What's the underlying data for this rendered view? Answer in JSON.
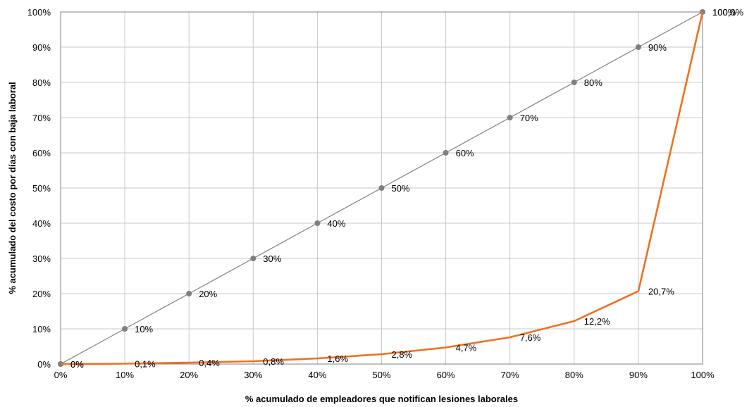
{
  "chart_data": {
    "type": "line",
    "title": "",
    "xlabel": "% acumulado de empleadores que notifican lesiones laborales",
    "ylabel": "% acumulado del costo por días con baja laboral",
    "x": [
      0,
      10,
      20,
      30,
      40,
      50,
      60,
      70,
      80,
      90,
      100
    ],
    "x_tick_labels": [
      "0%",
      "10%",
      "20%",
      "30%",
      "40%",
      "50%",
      "60%",
      "70%",
      "80%",
      "90%",
      "100%"
    ],
    "y_tick_labels": [
      "0%",
      "10%",
      "20%",
      "30%",
      "40%",
      "50%",
      "60%",
      "70%",
      "80%",
      "90%",
      "100%"
    ],
    "xlim": [
      0,
      100
    ],
    "ylim": [
      0,
      100
    ],
    "grid": true,
    "legend": "none",
    "series": [
      {
        "color": "#7f7f7f",
        "markers": true,
        "values": [
          0,
          10,
          20,
          30,
          40,
          50,
          60,
          70,
          80,
          90,
          100
        ],
        "labels": [
          "0%",
          "10%",
          "20%",
          "30%",
          "40%",
          "50%",
          "60%",
          "70%",
          "80%",
          "90%",
          "100%"
        ]
      },
      {
        "color": "#f07020",
        "markers": false,
        "values": [
          0,
          0.1,
          0.4,
          0.8,
          1.6,
          2.8,
          4.7,
          7.6,
          12.2,
          20.7,
          100
        ],
        "labels": [
          "0%",
          "0,1%",
          "0,4%",
          "0,8%",
          "1,6%",
          "2,8%",
          "4,7%",
          "7,6%",
          "12,2%",
          "20,7%",
          "100,0%"
        ]
      }
    ]
  }
}
